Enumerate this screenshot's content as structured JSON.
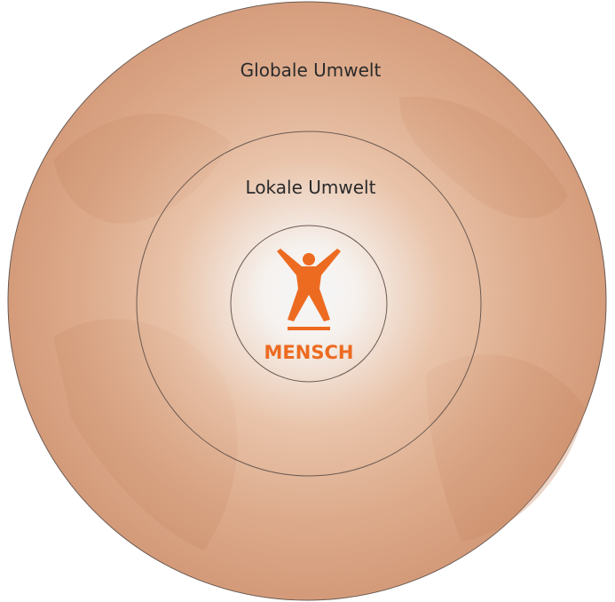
{
  "labels": {
    "global": "Globale Umwelt",
    "local": "Lokale Umwelt",
    "center": "MENSCH"
  }
}
